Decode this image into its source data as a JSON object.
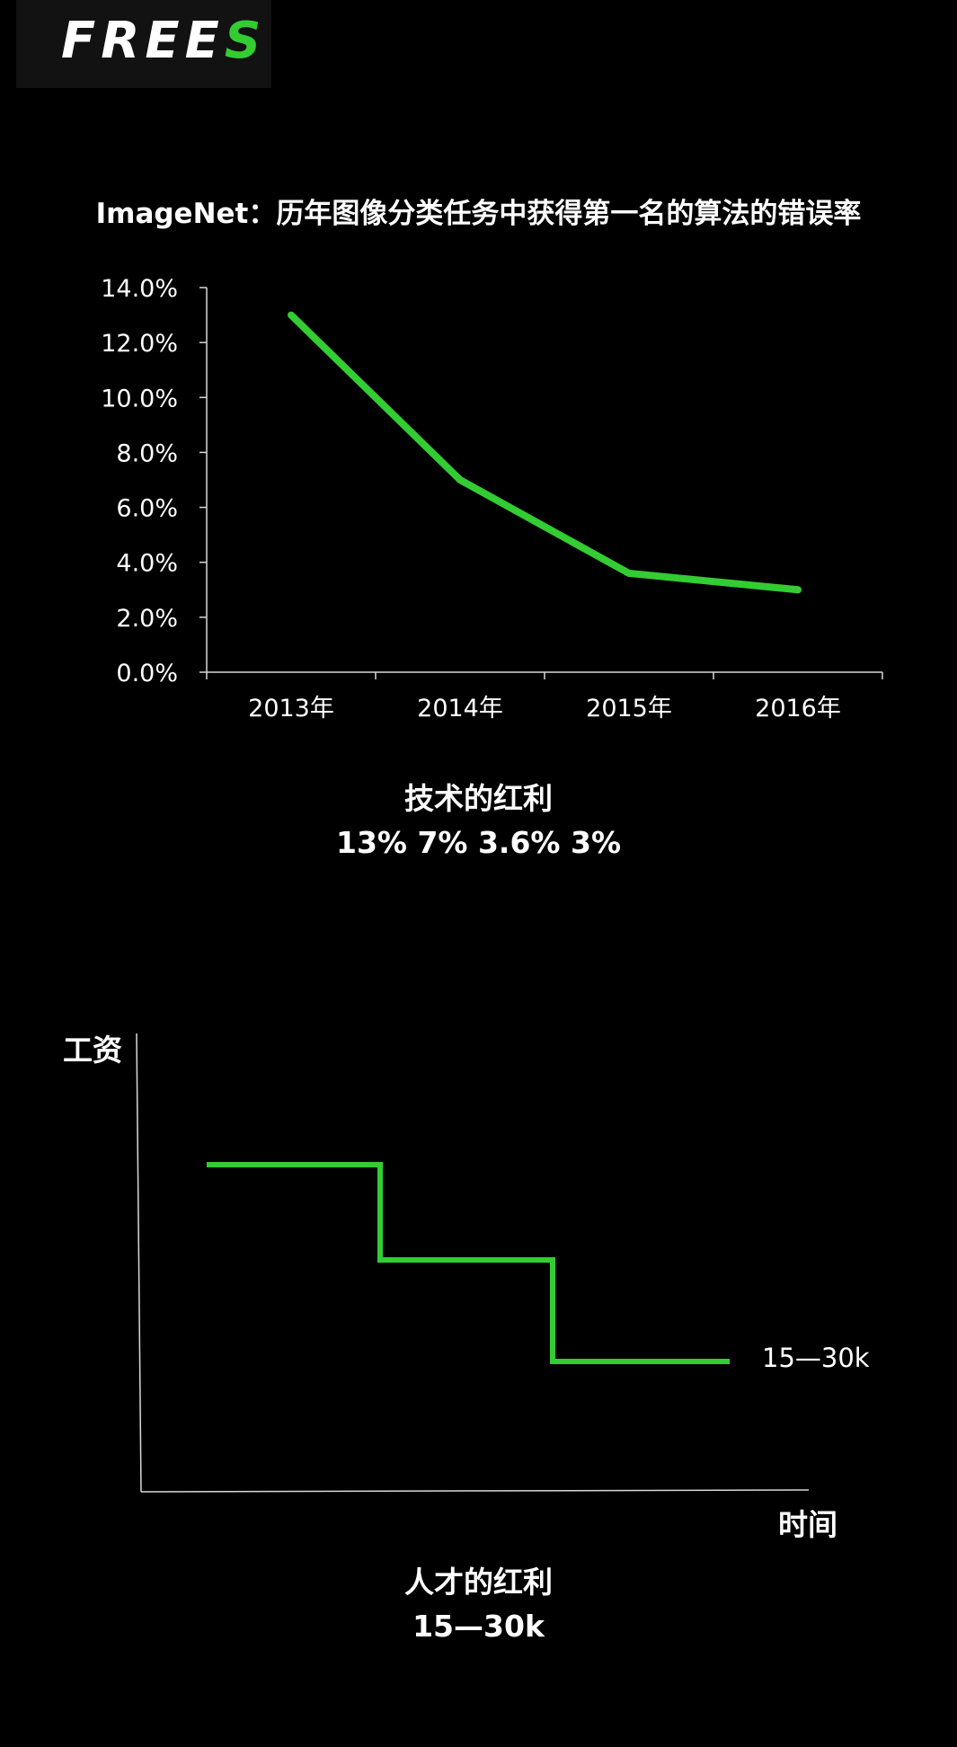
{
  "brand": {
    "logo_main": "FREE",
    "logo_accent": "S",
    "accent_color": "#33cc33"
  },
  "chart_data": [
    {
      "type": "line",
      "title": "ImageNet：历年图像分类任务中获得第一名的算法的错误率",
      "categories": [
        "2013年",
        "2014年",
        "2015年",
        "2016年"
      ],
      "values": [
        13.0,
        7.0,
        3.6,
        3.0
      ],
      "ylim": [
        0,
        14
      ],
      "yticks": [
        "0.0%",
        "2.0%",
        "4.0%",
        "6.0%",
        "8.0%",
        "10.0%",
        "12.0%",
        "14.0%"
      ],
      "color": "#33cc33",
      "grid": false
    },
    {
      "type": "line",
      "ylabel": "工资",
      "xlabel": "时间",
      "step": true,
      "annotation": "15—30k",
      "color": "#33cc33"
    }
  ],
  "caption1": {
    "title": "技术的红利",
    "values": "13% 7% 3.6% 3%"
  },
  "caption2": {
    "title": "人才的红利",
    "values": "15—30k"
  }
}
